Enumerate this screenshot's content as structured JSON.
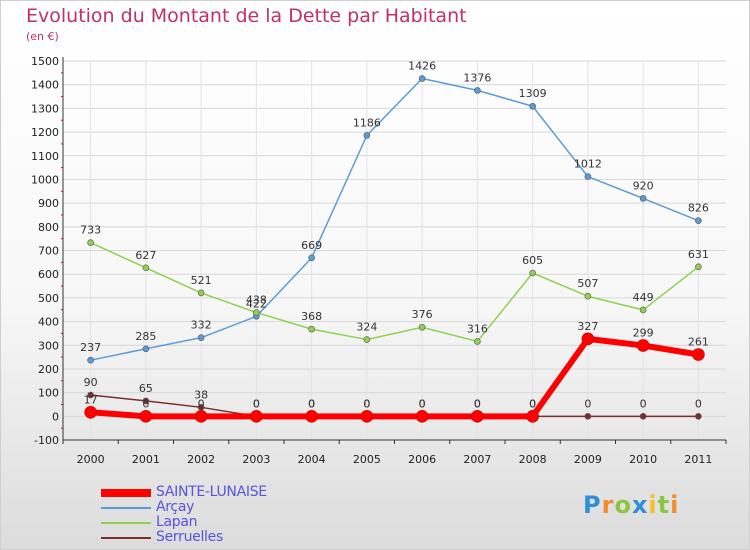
{
  "chart_data": {
    "type": "line",
    "title": "Evolution du Montant de la Dette par Habitant",
    "subtitle": "(en €)",
    "xlabel": "",
    "ylabel": "",
    "x": [
      "2000",
      "2001",
      "2002",
      "2003",
      "2004",
      "2005",
      "2006",
      "2007",
      "2008",
      "2009",
      "2010",
      "2011"
    ],
    "ylim": [
      -100,
      1500
    ],
    "yticks": [
      -100,
      0,
      100,
      200,
      300,
      400,
      500,
      600,
      700,
      800,
      900,
      1000,
      1100,
      1200,
      1300,
      1400,
      1500
    ],
    "grid": true,
    "legend_position": "bottom-left",
    "series": [
      {
        "name": "SAINTE-LUNAISE",
        "color": "#ff0000",
        "values": [
          17,
          0,
          0,
          0,
          0,
          0,
          0,
          0,
          0,
          327,
          299,
          261
        ],
        "labels": [
          "17",
          "0",
          "0",
          "0",
          "0",
          "0",
          "0",
          "0",
          "0",
          "327",
          "299",
          "261"
        ]
      },
      {
        "name": "Arçay",
        "color": "#5b9bd5",
        "values": [
          237,
          285,
          332,
          422,
          669,
          1186,
          1426,
          1376,
          1309,
          1012,
          920,
          826
        ],
        "labels": [
          "237",
          "285",
          "332",
          "422",
          "669",
          "1186",
          "1426",
          "1376",
          "1309",
          "1012",
          "920",
          "826"
        ]
      },
      {
        "name": "Lapan",
        "color": "#8fd14f",
        "values": [
          733,
          627,
          521,
          438,
          368,
          324,
          376,
          316,
          605,
          507,
          449,
          631
        ],
        "labels": [
          "733",
          "627",
          "521",
          "438",
          "368",
          "324",
          "376",
          "316",
          "605",
          "507",
          "449",
          "631"
        ]
      },
      {
        "name": "Serruelles",
        "color": "#7b2e2e",
        "values": [
          90,
          65,
          38,
          0,
          0,
          0,
          0,
          0,
          0,
          0,
          0,
          0
        ],
        "labels": [
          "90",
          "65",
          "38",
          "0",
          "0",
          "0",
          "0",
          "0",
          "0",
          "0",
          "0",
          "0"
        ]
      }
    ]
  },
  "logo": {
    "letters": [
      "P",
      "r",
      "o",
      "x",
      "i",
      "t",
      "i"
    ],
    "colors": [
      "#2f8fd8",
      "#f28c28",
      "#8cc63f",
      "#2f8fd8",
      "#f2c028",
      "#8cc63f",
      "#f28c28"
    ]
  }
}
